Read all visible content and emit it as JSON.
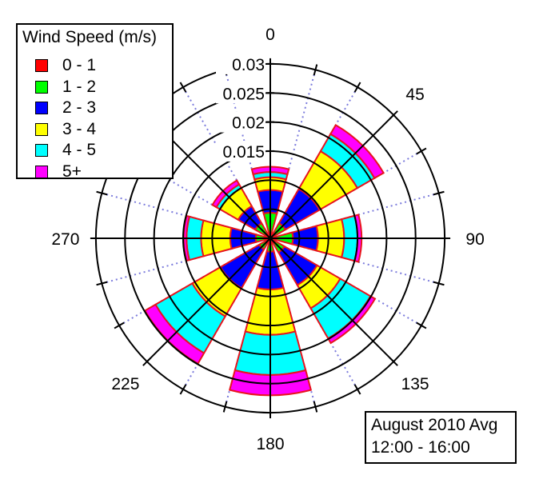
{
  "chart_data": {
    "type": "wind-rose (stacked polar bar)",
    "directions": [
      0,
      45,
      90,
      135,
      180,
      225,
      270,
      315
    ],
    "direction_tick_labels": [
      "0",
      "45",
      "90",
      "135",
      "180",
      "225",
      "270"
    ],
    "radial_tick_labels": [
      "0.015",
      "0.02",
      "0.025",
      "0.03"
    ],
    "radial_ticks": [
      0.005,
      0.01,
      0.015,
      0.02,
      0.025,
      0.03
    ],
    "rlim": [
      0,
      0.03
    ],
    "sector_width_deg": 30,
    "grid": true,
    "legend": {
      "title": "Wind Speed (m/s)",
      "placement": "top-left"
    },
    "series": [
      {
        "name": "0 - 1",
        "color": "#ff0000",
        "values": [
          0.0007,
          0.0007,
          0.0007,
          0.0007,
          0.0007,
          0.0007,
          0.0007,
          0.0007
        ]
      },
      {
        "name": "1 - 2",
        "color": "#00ff00",
        "values": [
          0.0037,
          0.0023,
          0.0032,
          0.0021,
          0.0016,
          0.0015,
          0.0018,
          0.0023
        ]
      },
      {
        "name": "2 - 3",
        "color": "#0000ff",
        "values": [
          0.0039,
          0.0068,
          0.0043,
          0.0065,
          0.0065,
          0.0077,
          0.0044,
          0.0034
        ]
      },
      {
        "name": "3 - 4",
        "color": "#ffff00",
        "values": [
          0.0022,
          0.0075,
          0.0045,
          0.0046,
          0.0078,
          0.0056,
          0.005,
          0.0036
        ]
      },
      {
        "name": "4 - 5",
        "color": "#00ffff",
        "values": [
          0.0009,
          0.0034,
          0.0023,
          0.006,
          0.0069,
          0.0073,
          0.0025,
          0.0007
        ]
      },
      {
        "name": "5+",
        "color": "#ff00ff",
        "values": [
          0.0009,
          0.0018,
          0.0007,
          0.0009,
          0.0035,
          0.0021,
          0.0005,
          0.0008
        ]
      }
    ],
    "annotation": [
      "August 2010 Avg",
      "12:00 - 16:00"
    ]
  }
}
